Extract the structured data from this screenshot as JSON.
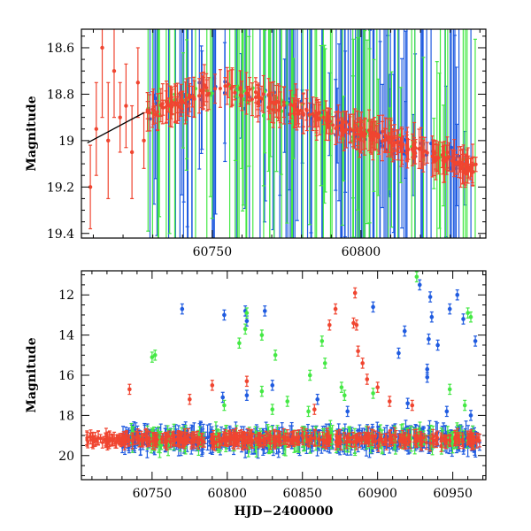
{
  "colors": {
    "red": "#f04530",
    "blue": "#1f5be0",
    "green": "#44e844",
    "black": "#000000"
  },
  "chart_data": [
    {
      "type": "scatter",
      "panel": "top",
      "xlabel": "",
      "ylabel": "Magnitude",
      "xlim": [
        60706,
        60842
      ],
      "ylim": [
        19.42,
        18.52
      ],
      "y_inverted": true,
      "xticks": [
        60750,
        60800
      ],
      "xtick_labels": [
        "60750",
        "60800"
      ],
      "yticks": [
        18.6,
        18.8,
        19,
        19.2,
        19.4
      ],
      "ytick_labels": [
        "18.6",
        "18.8",
        "19",
        "19.2",
        "19.4"
      ],
      "series": [
        {
          "name": "red",
          "color": "#f04530",
          "values": [
            [
              60709,
              19.2,
              0.18
            ],
            [
              60711,
              18.95,
              0.2
            ],
            [
              60713,
              18.6,
              0.3
            ],
            [
              60715,
              19.0,
              0.25
            ],
            [
              60717,
              18.7,
              0.2
            ],
            [
              60719,
              18.9,
              0.15
            ],
            [
              60721,
              18.85,
              0.18
            ],
            [
              60723,
              19.05,
              0.2
            ],
            [
              60725,
              18.75,
              0.15
            ],
            [
              60727,
              19.0,
              0.12
            ]
          ]
        },
        {
          "name": "trend",
          "color": "#000000",
          "values": [
            [
              60708,
              19.01
            ],
            [
              60727,
              18.88
            ]
          ]
        }
      ],
      "dense_bands": [
        {
          "name": "blue",
          "x_range": [
            60728,
            60840
          ]
        },
        {
          "name": "green",
          "x_range": [
            60728,
            60840
          ]
        },
        {
          "name": "red",
          "x_range": [
            60728,
            60840
          ]
        }
      ]
    },
    {
      "type": "scatter",
      "panel": "bottom",
      "xlabel": "HJD−2400000",
      "ylabel": "Magnitude",
      "xlim": [
        60703,
        60972
      ],
      "ylim": [
        21.2,
        10.8
      ],
      "y_inverted": true,
      "xticks": [
        60750,
        60800,
        60850,
        60900,
        60950
      ],
      "xtick_labels": [
        "60750",
        "60800",
        "60850",
        "60900",
        "60950"
      ],
      "yticks": [
        12,
        14,
        16,
        18,
        20
      ],
      "ytick_labels": [
        "12",
        "14",
        "16",
        "18",
        "20"
      ],
      "outliers": {
        "blue": [
          [
            60770,
            12.7
          ],
          [
            60798,
            13.0
          ],
          [
            60812,
            12.8
          ],
          [
            60813,
            13.3
          ],
          [
            60825,
            12.8
          ],
          [
            60897,
            12.6
          ],
          [
            60928,
            11.5
          ],
          [
            60935,
            12.1
          ],
          [
            60936,
            13.1
          ],
          [
            60948,
            12.7
          ],
          [
            60953,
            12.0
          ],
          [
            60957,
            13.2
          ],
          [
            60965,
            14.3
          ],
          [
            60934,
            14.2
          ],
          [
            60940,
            14.5
          ],
          [
            60914,
            14.9
          ],
          [
            60918,
            13.8
          ],
          [
            60933,
            15.7
          ],
          [
            60933,
            16.1
          ],
          [
            60880,
            17.8
          ],
          [
            60797,
            17.1
          ],
          [
            60813,
            17.0
          ],
          [
            60830,
            16.5
          ],
          [
            60920,
            17.4
          ],
          [
            60860,
            17.2
          ],
          [
            60946,
            17.8
          ],
          [
            60962,
            18.0
          ]
        ],
        "green": [
          [
            60750,
            15.1
          ],
          [
            60752,
            15.0
          ],
          [
            60813,
            12.9
          ],
          [
            60812,
            13.7
          ],
          [
            60808,
            14.4
          ],
          [
            60823,
            14.0
          ],
          [
            60832,
            15.0
          ],
          [
            60855,
            16.0
          ],
          [
            60863,
            14.3
          ],
          [
            60865,
            15.4
          ],
          [
            60876,
            16.6
          ],
          [
            60878,
            17.0
          ],
          [
            60897,
            16.9
          ],
          [
            60840,
            17.3
          ],
          [
            60823,
            16.8
          ],
          [
            60926,
            11.1
          ],
          [
            60960,
            12.9
          ],
          [
            60962,
            13.1
          ],
          [
            60948,
            16.7
          ],
          [
            60958,
            17.5
          ],
          [
            60798,
            17.5
          ],
          [
            60830,
            17.7
          ],
          [
            60854,
            17.8
          ]
        ],
        "red": [
          [
            60735,
            16.7
          ],
          [
            60775,
            17.2
          ],
          [
            60790,
            16.5
          ],
          [
            60813,
            16.3
          ],
          [
            60858,
            17.7
          ],
          [
            60872,
            12.7
          ],
          [
            60868,
            13.5
          ],
          [
            60885,
            11.9
          ],
          [
            60886,
            13.5
          ],
          [
            60884,
            13.4
          ],
          [
            60887,
            14.8
          ],
          [
            60890,
            15.4
          ],
          [
            60893,
            16.2
          ],
          [
            60900,
            16.6
          ],
          [
            60908,
            17.3
          ],
          [
            60923,
            17.5
          ]
        ]
      },
      "dense_bands": [
        {
          "name": "blue",
          "x_range": [
            60730,
            60968
          ]
        },
        {
          "name": "green",
          "x_range": [
            60735,
            60968
          ]
        },
        {
          "name": "red",
          "x_range": [
            60706,
            60968
          ]
        }
      ]
    }
  ]
}
